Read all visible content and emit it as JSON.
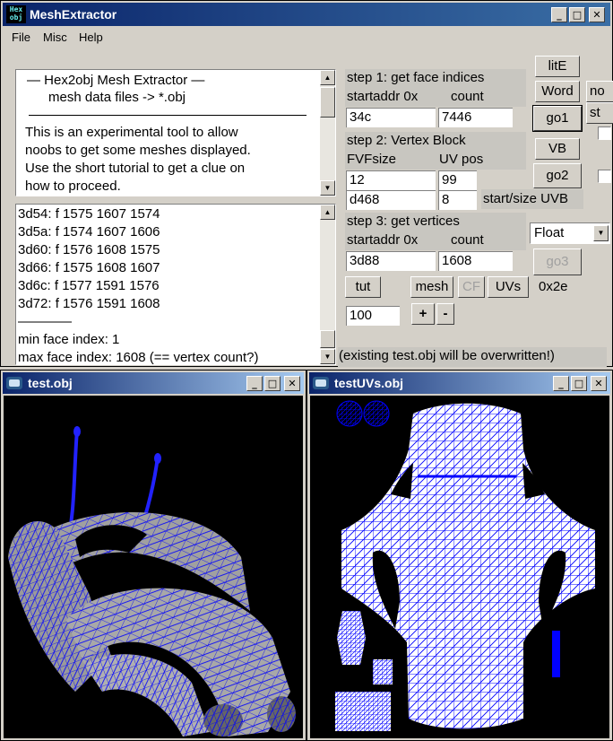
{
  "main_window": {
    "title": "MeshExtractor",
    "icon_text_1": "Hex",
    "icon_text_2": "obj"
  },
  "menu": [
    "File",
    "Misc",
    "Help"
  ],
  "info_box": {
    "lines": [
      "—   Hex2obj Mesh Extractor   —",
      "mesh data files -> *.obj",
      "",
      "This is an experimental tool to allow",
      "noobs to get some meshes displayed.",
      "Use the short tutorial to get a clue on",
      "how to proceed."
    ]
  },
  "log_box": {
    "lines": [
      "3d54: f  1575 1607 1574",
      "3d5a: f  1574 1607 1606",
      "3d60: f  1576 1608 1575",
      "3d66: f  1575 1608 1607",
      "3d6c: f  1577 1591 1576",
      "3d72: f  1576 1591 1608",
      "————",
      "min face index: 1",
      "max face index: 1608 (== vertex count?)"
    ]
  },
  "step1": {
    "title": "step 1: get face indices",
    "startaddr_label": "startaddr 0x",
    "count_label": "count",
    "startaddr": "34c",
    "count": "7446"
  },
  "step2": {
    "title": "step 2: Vertex Block",
    "fvf_label": "FVFsize",
    "uv_label": "UV pos",
    "fvf": "12",
    "uvpos": "99",
    "uvb_start": "d468",
    "uvb_size": "8",
    "uvb_label": "start/size UVB"
  },
  "step3": {
    "title": "step 3: get vertices",
    "startaddr_label": "startaddr 0x",
    "count_label": "count",
    "startaddr": "3d88",
    "count": "1608"
  },
  "buttons": {
    "lite": "litE",
    "word": "Word",
    "go1": "go1",
    "vb": "VB",
    "go2": "go2",
    "go3": "go3",
    "tut": "tut",
    "mesh": "mesh",
    "cf": "CF",
    "uvs": "UVs",
    "plus": "+",
    "minus": "-",
    "no_partial": "no",
    "st_partial": "st"
  },
  "type_select": "Float",
  "hex_value": "0x2e",
  "step_value": "100",
  "status": "(existing test.obj will be overwritten!)",
  "mesh_window": {
    "title": "test.obj"
  },
  "uv_window": {
    "title": "testUVs.obj"
  }
}
